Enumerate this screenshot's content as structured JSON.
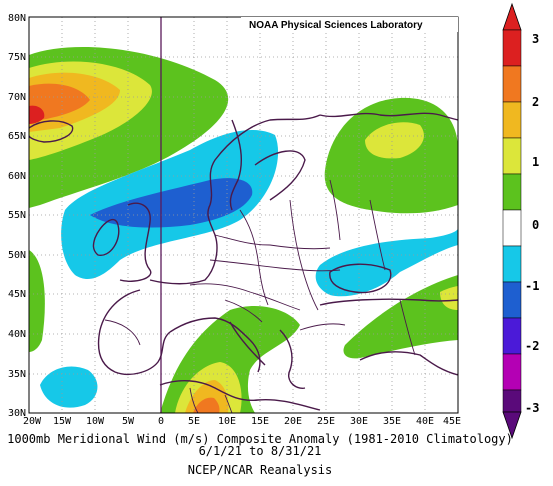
{
  "credit": "NOAA Physical Sciences Laboratory",
  "title_line1": "1000mb Meridional Wind (m/s) Composite Anomaly (1981-2010 Climatology)",
  "title_line2": "6/1/21 to 8/31/21",
  "title_line3": "NCEP/NCAR Reanalysis",
  "lat_labels": [
    "80N",
    "75N",
    "70N",
    "65N",
    "60N",
    "55N",
    "50N",
    "45N",
    "40N",
    "35N",
    "30N"
  ],
  "lon_labels": [
    "20W",
    "15W",
    "10W",
    "5W",
    "0",
    "5E",
    "10E",
    "15E",
    "20E",
    "25E",
    "30E",
    "35E",
    "40E",
    "45E"
  ],
  "colorbar": {
    "labels": [
      "3",
      "2",
      "1",
      "0",
      "-1",
      "-2",
      "-3"
    ],
    "colors": [
      "#5a0a7a",
      "#b400b4",
      "#4b1ad8",
      "#1e5fd0",
      "#16c8e8",
      "#ffffff",
      "#5cc21e",
      "#dce63a",
      "#f0b820",
      "#f07820",
      "#dc2020"
    ]
  },
  "chart_data": {
    "type": "map-contour",
    "variable": "1000mb Meridional Wind (m/s) Composite Anomaly",
    "lon_range": [
      -20,
      45
    ],
    "lat_range": [
      30,
      80
    ],
    "levels": [
      -3,
      -2.5,
      -2,
      -1.5,
      -1,
      -0.5,
      0.5,
      1,
      1.5,
      2,
      2.5,
      3
    ],
    "features": [
      {
        "region": "Iceland / Norwegian Sea (20W-10W, 65-72N)",
        "sign": "positive",
        "peak": 2.5
      },
      {
        "region": "North Sea / southern Scandinavia (0-15E, 53-58N)",
        "sign": "negative",
        "peak": -1.5
      },
      {
        "region": "Scandinavia north (5-20E, 58-68N)",
        "sign": "negative",
        "peak": -0.8
      },
      {
        "region": "NW Russia / Kola (25-40E, 58-70N)",
        "sign": "positive",
        "peak": 1.3
      },
      {
        "region": "Tunisia / Libya (5-10E, 30-35N)",
        "sign": "positive",
        "peak": 2.2
      },
      {
        "region": "Italy / Balkans (10-20E, 38-45N)",
        "sign": "positive",
        "peak": 0.8
      },
      {
        "region": "Ukraine / Black Sea (25-35E, 45-52N)",
        "sign": "negative",
        "peak": -1.0
      },
      {
        "region": "Turkey / Black Sea (30-45E, 40-45N)",
        "sign": "positive",
        "peak": 1.2
      },
      {
        "region": "Atlantic off Morocco (20W-15W, 30-35N)",
        "sign": "negative",
        "peak": -0.8
      }
    ]
  }
}
